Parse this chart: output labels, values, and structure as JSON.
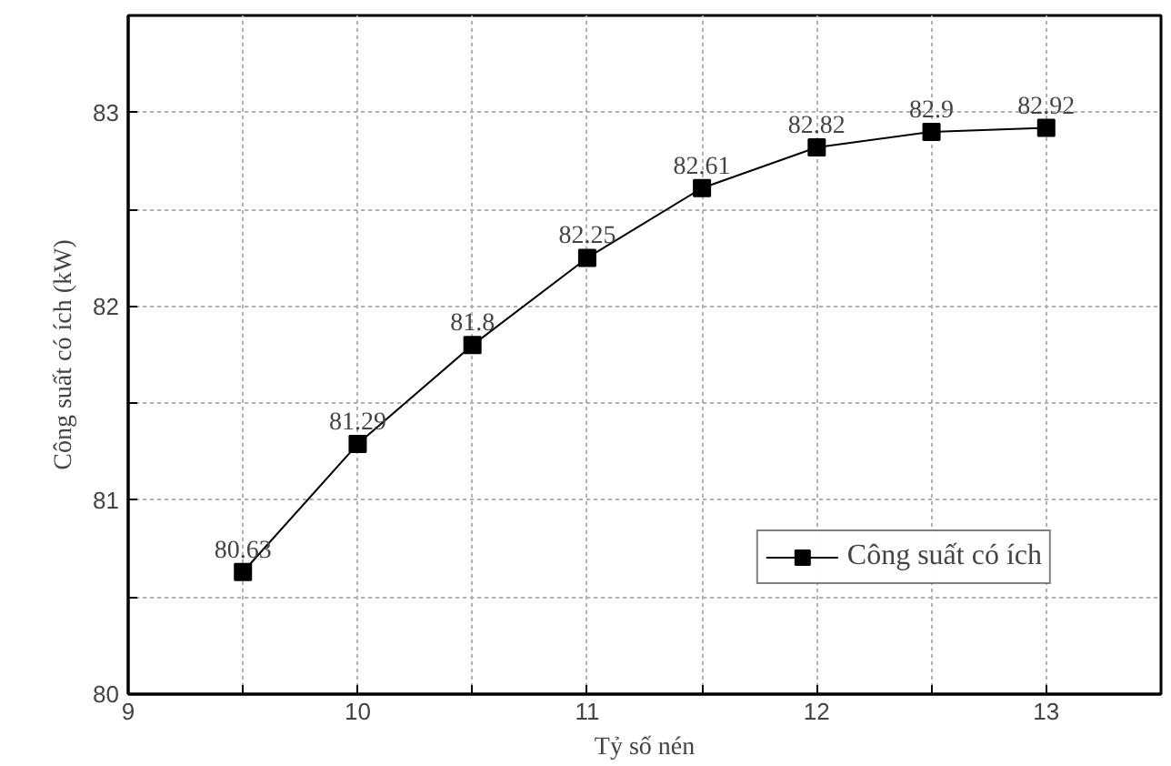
{
  "chart_data": {
    "type": "line",
    "xlabel": "Tỷ số nén",
    "ylabel": "Công suất có ích (kW)",
    "x": [
      9.5,
      10,
      10.5,
      11,
      11.5,
      12,
      12.5,
      13
    ],
    "series": [
      {
        "name": "Công suất có ích",
        "color": "#000000",
        "values": [
          80.63,
          81.29,
          81.8,
          82.25,
          82.61,
          82.82,
          82.9,
          82.92
        ]
      }
    ],
    "xlim": [
      9,
      13.5
    ],
    "ylim": [
      80,
      83.5
    ],
    "xticks": [
      9,
      {
        "value": 9.5,
        "label": null
      },
      10,
      {
        "value": 10.5,
        "label": null
      },
      11,
      {
        "value": 11.5,
        "label": null
      },
      12,
      {
        "value": 12.5,
        "label": null
      },
      13
    ],
    "yticks": [
      80,
      {
        "value": 80.5,
        "label": null
      },
      81,
      {
        "value": 81.5,
        "label": null
      },
      82,
      {
        "value": 82.5,
        "label": null
      },
      83
    ],
    "grid": true,
    "legend": "bottom right",
    "marker": "square",
    "line_style": "solid",
    "data_labels": true
  }
}
